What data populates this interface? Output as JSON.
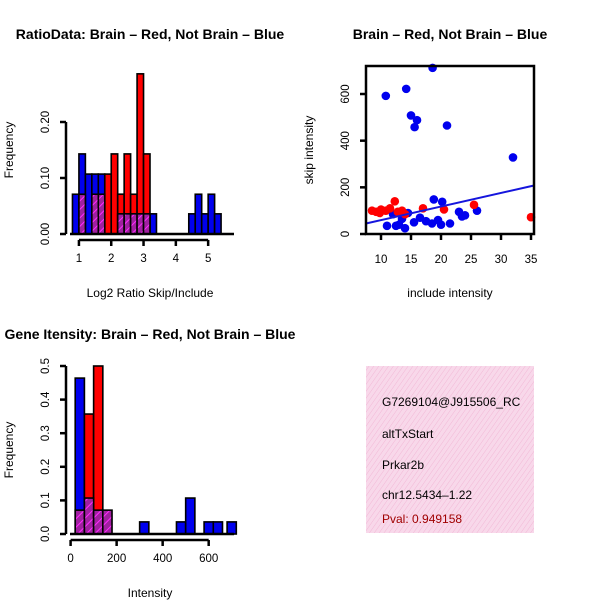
{
  "colors": {
    "red": "#ff0000",
    "blue": "#0000ee",
    "purple": "#a020a0",
    "info_bg": "#f8d8ea",
    "pval": "#a00000",
    "line": "#1515dd"
  },
  "chart_data": [
    {
      "id": "ratio_hist",
      "type": "bar",
      "title": "RatioData: Brain – Red, Not Brain – Blue",
      "xlabel": "Log2 Ratio Skip/Include",
      "ylabel": "Frequency",
      "xticks": [
        "1",
        "2",
        "3",
        "4",
        "5"
      ],
      "yticks": [
        "0.00",
        "0.10",
        "0.20"
      ],
      "xlim": [
        0.6,
        5.8
      ],
      "ylim": [
        0,
        0.3
      ],
      "bin_width": 0.2,
      "series": [
        {
          "name": "Not Brain",
          "color": "blue",
          "bins": [
            [
              0.8,
              0.071
            ],
            [
              1.0,
              0.143
            ],
            [
              1.2,
              0.107
            ],
            [
              1.4,
              0.107
            ],
            [
              1.6,
              0.107
            ],
            [
              1.8,
              0.071
            ],
            [
              2.0,
              0.071
            ],
            [
              2.2,
              0.071
            ],
            [
              2.4,
              0.071
            ],
            [
              2.6,
              0.036
            ],
            [
              2.8,
              0.036
            ],
            [
              3.0,
              0.036
            ],
            [
              3.2,
              0.036
            ],
            [
              4.4,
              0.036
            ],
            [
              4.6,
              0.071
            ],
            [
              4.8,
              0.036
            ],
            [
              5.0,
              0.071
            ],
            [
              5.2,
              0.036
            ]
          ]
        },
        {
          "name": "Brain",
          "color": "red",
          "bins": [
            [
              1.8,
              0.107
            ],
            [
              2.0,
              0.143
            ],
            [
              2.2,
              0.071
            ],
            [
              2.4,
              0.143
            ],
            [
              2.6,
              0.071
            ],
            [
              2.8,
              0.286
            ],
            [
              3.0,
              0.143
            ]
          ]
        },
        {
          "name": "Overlap",
          "color": "purple",
          "bins": [
            [
              1.0,
              0.071
            ],
            [
              1.4,
              0.071
            ],
            [
              1.6,
              0.071
            ],
            [
              2.2,
              0.036
            ],
            [
              2.4,
              0.036
            ],
            [
              2.6,
              0.036
            ],
            [
              2.8,
              0.036
            ],
            [
              3.0,
              0.036
            ]
          ]
        }
      ]
    },
    {
      "id": "scatter",
      "type": "scatter",
      "title": "Brain – Red, Not Brain – Blue",
      "xlabel": "include intensity",
      "ylabel": "skip intensity",
      "xticks": [
        "10",
        "15",
        "20",
        "25",
        "30",
        "35"
      ],
      "yticks": [
        "0",
        "200",
        "400",
        "600"
      ],
      "xlim": [
        7.5,
        35.5
      ],
      "ylim": [
        0,
        720
      ],
      "series": [
        {
          "name": "Not Brain",
          "color": "blue",
          "points": [
            [
              18.6,
              712
            ],
            [
              14.2,
              622
            ],
            [
              10.8,
              592
            ],
            [
              15.0,
              508
            ],
            [
              16.0,
              488
            ],
            [
              15.6,
              458
            ],
            [
              21.0,
              465
            ],
            [
              32.0,
              328
            ],
            [
              18.8,
              148
            ],
            [
              20.2,
              138
            ],
            [
              12.0,
              85
            ],
            [
              13.5,
              65
            ],
            [
              14.5,
              90
            ],
            [
              16.5,
              70
            ],
            [
              17.5,
              55
            ],
            [
              18.5,
              45
            ],
            [
              20.0,
              40
            ],
            [
              23.0,
              95
            ],
            [
              23.5,
              75
            ],
            [
              26.0,
              100
            ],
            [
              12.5,
              35
            ],
            [
              14.0,
              25
            ],
            [
              15.5,
              50
            ],
            [
              19.5,
              60
            ],
            [
              21.5,
              45
            ],
            [
              24.0,
              80
            ],
            [
              13.0,
              40
            ],
            [
              11.0,
              35
            ]
          ]
        },
        {
          "name": "Brain",
          "color": "red",
          "points": [
            [
              8.5,
              100
            ],
            [
              9.2,
              95
            ],
            [
              10.0,
              105
            ],
            [
              10.8,
              100
            ],
            [
              11.5,
              110
            ],
            [
              12.3,
              140
            ],
            [
              12.8,
              95
            ],
            [
              14.0,
              85
            ],
            [
              17.0,
              110
            ],
            [
              20.5,
              105
            ],
            [
              25.5,
              125
            ],
            [
              35.0,
              72
            ],
            [
              13.5,
              100
            ],
            [
              9.8,
              90
            ]
          ]
        }
      ],
      "fit_line": {
        "x": [
          7.5,
          35.5
        ],
        "y": [
          45,
          208
        ],
        "color": "line"
      }
    },
    {
      "id": "intensity_hist",
      "type": "bar",
      "title": "Gene Itensity: Brain – Red, Not Brain – Blue",
      "xlabel": "Intensity",
      "ylabel": "Frequency",
      "xticks": [
        "0",
        "200",
        "400",
        "600"
      ],
      "yticks": [
        "0.0",
        "0.1",
        "0.2",
        "0.3",
        "0.4",
        "0.5"
      ],
      "xlim": [
        -20,
        710
      ],
      "ylim": [
        0,
        0.5
      ],
      "bin_width": 40,
      "series": [
        {
          "name": "Not Brain",
          "color": "blue",
          "bins": [
            [
              20,
              0.464
            ],
            [
              60,
              0.286
            ],
            [
              100,
              0.071
            ],
            [
              300,
              0.036
            ],
            [
              460,
              0.036
            ],
            [
              500,
              0.107
            ],
            [
              580,
              0.036
            ],
            [
              620,
              0.036
            ],
            [
              680,
              0.036
            ]
          ]
        },
        {
          "name": "Brain",
          "color": "red",
          "bins": [
            [
              60,
              0.357
            ],
            [
              100,
              0.5
            ]
          ]
        },
        {
          "name": "Overlap",
          "color": "purple",
          "bins": [
            [
              20,
              0.071
            ],
            [
              60,
              0.107
            ],
            [
              100,
              0.071
            ],
            [
              140,
              0.071
            ]
          ]
        }
      ]
    }
  ],
  "info_box": {
    "probe": "G7269104@J915506_RC",
    "event": "altTxStart",
    "gene": "Prkar2b",
    "location": "chr12.5434–1.22",
    "pval": "Pval: 0.949158"
  }
}
